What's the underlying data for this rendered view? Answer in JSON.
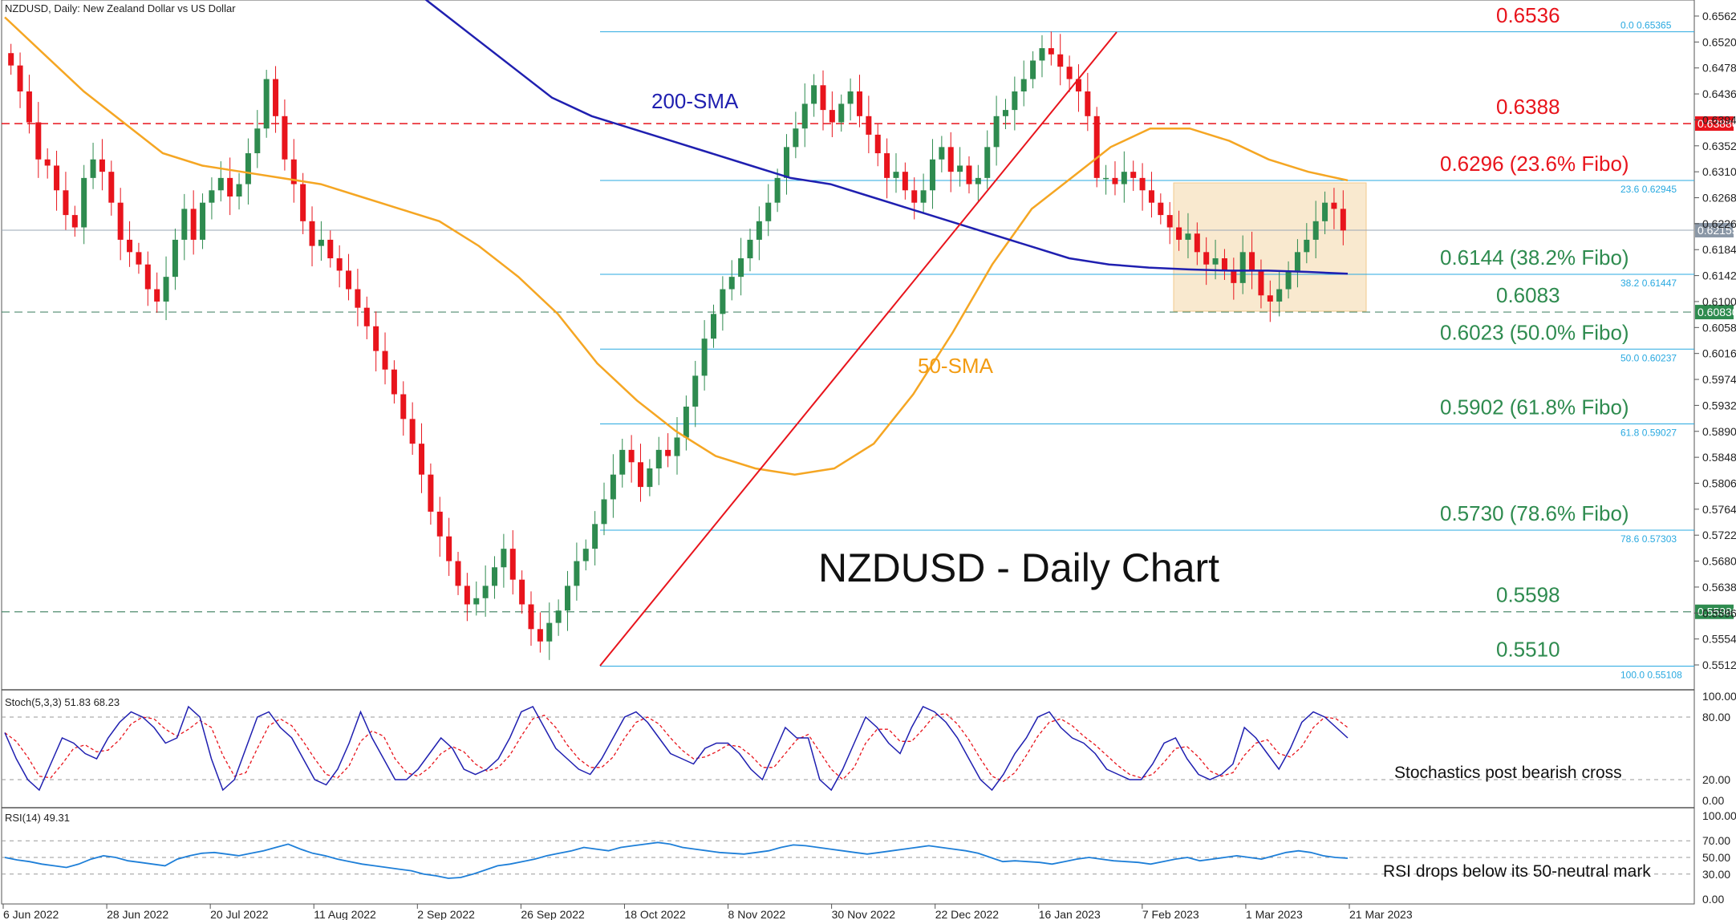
{
  "chart_data": {
    "type": "candlestick",
    "header": "NZDUSD, Daily:  New Zealand Dollar vs US Dollar",
    "title": "NZDUSD - Daily Chart",
    "x_labels": [
      "6 Jun 2022",
      "28 Jun 2022",
      "20 Jul 2022",
      "11 Aug 2022",
      "2 Sep 2022",
      "26 Sep 2022",
      "18 Oct 2022",
      "8 Nov 2022",
      "30 Nov 2022",
      "22 Dec 2022",
      "16 Jan 2023",
      "7 Feb 2023",
      "1 Mar 2023",
      "21 Mar 2023"
    ],
    "y_ticks": [
      "0.65620",
      "0.65200",
      "0.64780",
      "0.64360",
      "0.63940",
      "0.63520",
      "0.63100",
      "0.62680",
      "0.62260",
      "0.61840",
      "0.61420",
      "0.61000",
      "0.60580",
      "0.60160",
      "0.59740",
      "0.59320",
      "0.58900",
      "0.58480",
      "0.58060",
      "0.57640",
      "0.57220",
      "0.56800",
      "0.56380",
      "0.55960",
      "0.55540",
      "0.55120"
    ],
    "ylim": [
      0.5495,
      0.6575
    ],
    "close_series": [
      0.6482,
      0.644,
      0.639,
      0.633,
      0.632,
      0.628,
      0.624,
      0.622,
      0.63,
      0.633,
      0.631,
      0.626,
      0.62,
      0.618,
      0.616,
      0.612,
      0.61,
      0.614,
      0.62,
      0.625,
      0.62,
      0.626,
      0.628,
      0.63,
      0.627,
      0.629,
      0.634,
      0.638,
      0.646,
      0.64,
      0.633,
      0.629,
      0.623,
      0.619,
      0.62,
      0.617,
      0.615,
      0.612,
      0.609,
      0.606,
      0.602,
      0.599,
      0.595,
      0.591,
      0.587,
      0.582,
      0.576,
      0.572,
      0.568,
      0.564,
      0.561,
      0.562,
      0.564,
      0.567,
      0.57,
      0.565,
      0.561,
      0.557,
      0.555,
      0.558,
      0.56,
      0.564,
      0.568,
      0.57,
      0.574,
      0.578,
      0.582,
      0.586,
      0.584,
      0.58,
      0.583,
      0.586,
      0.585,
      0.588,
      0.593,
      0.598,
      0.604,
      0.608,
      0.612,
      0.614,
      0.617,
      0.62,
      0.623,
      0.626,
      0.63,
      0.635,
      0.638,
      0.642,
      0.645,
      0.641,
      0.639,
      0.642,
      0.644,
      0.64,
      0.637,
      0.634,
      0.63,
      0.631,
      0.628,
      0.626,
      0.628,
      0.633,
      0.635,
      0.631,
      0.632,
      0.629,
      0.63,
      0.635,
      0.64,
      0.641,
      0.644,
      0.646,
      0.649,
      0.651,
      0.65,
      0.648,
      0.646,
      0.644,
      0.64,
      0.63,
      0.63,
      0.629,
      0.631,
      0.63,
      0.628,
      0.626,
      0.624,
      0.622,
      0.62,
      0.621,
      0.618,
      0.616,
      0.617,
      0.615,
      0.613,
      0.618,
      0.615,
      0.611,
      0.61,
      0.612,
      0.615,
      0.618,
      0.62,
      0.623,
      0.626,
      0.625,
      0.6215
    ],
    "sma50": [
      0.656,
      0.65,
      0.644,
      0.639,
      0.634,
      0.632,
      0.631,
      0.63,
      0.629,
      0.627,
      0.625,
      0.623,
      0.619,
      0.614,
      0.608,
      0.6,
      0.594,
      0.589,
      0.585,
      0.583,
      0.582,
      0.583,
      0.587,
      0.595,
      0.605,
      0.616,
      0.625,
      0.63,
      0.635,
      0.638,
      0.638,
      0.636,
      0.633,
      0.631,
      0.6296
    ],
    "sma200": [
      0.668,
      0.663,
      0.658,
      0.653,
      0.648,
      0.643,
      0.64,
      0.638,
      0.636,
      0.634,
      0.632,
      0.63,
      0.629,
      0.627,
      0.625,
      0.623,
      0.621,
      0.619,
      0.617,
      0.616,
      0.6155,
      0.6152,
      0.615,
      0.615,
      0.6148,
      0.6145
    ],
    "levels": [
      {
        "value": 0.6536,
        "label": "0.6536",
        "color": "#e8141c",
        "style": "none"
      },
      {
        "value": 0.6388,
        "label": "0.6388",
        "color": "#e8141c",
        "style": "dashed-red",
        "tag": "0.63880"
      },
      {
        "value": 0.6296,
        "label": "0.6296 (23.6% Fibo)",
        "color": "#e8141c",
        "style": "fibo",
        "fibo_text": "23.6 0.62945"
      },
      {
        "value": 0.6144,
        "label": "0.6144 (38.2% Fibo)",
        "color": "#2e8b4f",
        "style": "fibo",
        "fibo_text": "38.2 0.61447"
      },
      {
        "value": 0.6083,
        "label": "0.6083",
        "color": "#2e8b4f",
        "style": "dashed-gray",
        "tag": "0.60830"
      },
      {
        "value": 0.6023,
        "label": "0.6023 (50.0% Fibo)",
        "color": "#2e8b4f",
        "style": "fibo",
        "fibo_text": "50.0 0.60237"
      },
      {
        "value": 0.5902,
        "label": "0.5902 (61.8% Fibo)",
        "color": "#2e8b4f",
        "style": "fibo",
        "fibo_text": "61.8 0.59027"
      },
      {
        "value": 0.573,
        "label": "0.5730 (78.6% Fibo)",
        "color": "#2e8b4f",
        "style": "fibo",
        "fibo_text": "78.6 0.57303"
      },
      {
        "value": 0.5598,
        "label": "0.5598",
        "color": "#2e8b4f",
        "style": "dashed-gray",
        "tag": "0.55980"
      },
      {
        "value": 0.551,
        "label": "0.5510",
        "color": "#2e8b4f",
        "style": "fibo",
        "fibo_text": "100.0 0.55108"
      }
    ],
    "fibo_top_text": "0.0 0.65365",
    "current_price_tag": "0.62155",
    "sma200_label": "200-SMA",
    "sma50_label": "50-SMA",
    "stoch": {
      "label": "Stoch(5,3,3) 51.83 68.23",
      "ticks": [
        "100.00",
        "80.00",
        "20.00",
        "0.00"
      ],
      "annotation": "Stochastics post bearish cross",
      "values": [
        65,
        40,
        20,
        10,
        35,
        60,
        55,
        45,
        40,
        60,
        75,
        85,
        80,
        70,
        55,
        60,
        90,
        80,
        40,
        10,
        20,
        50,
        80,
        85,
        70,
        60,
        40,
        20,
        15,
        30,
        55,
        85,
        60,
        40,
        20,
        20,
        30,
        45,
        60,
        50,
        30,
        25,
        30,
        40,
        60,
        85,
        90,
        70,
        50,
        40,
        30,
        25,
        40,
        60,
        80,
        85,
        75,
        60,
        45,
        40,
        35,
        50,
        55,
        55,
        45,
        30,
        20,
        45,
        70,
        60,
        60,
        20,
        10,
        30,
        55,
        80,
        70,
        55,
        45,
        70,
        90,
        85,
        75,
        60,
        40,
        20,
        10,
        25,
        45,
        60,
        80,
        85,
        70,
        60,
        55,
        45,
        30,
        25,
        20,
        20,
        35,
        55,
        60,
        40,
        25,
        20,
        25,
        35,
        70,
        60,
        45,
        30,
        50,
        75,
        85,
        80,
        70,
        60
      ]
    },
    "rsi": {
      "label": "RSI(14) 49.31",
      "ticks": [
        "100.00",
        "70.00",
        "50.00",
        "30.00",
        "0.00"
      ],
      "annotation": "RSI drops below its 50-neutral mark",
      "values": [
        50,
        47,
        45,
        42,
        40,
        38,
        42,
        48,
        52,
        50,
        46,
        44,
        42,
        40,
        48,
        52,
        55,
        56,
        54,
        52,
        55,
        58,
        62,
        66,
        60,
        55,
        52,
        48,
        45,
        42,
        40,
        38,
        36,
        34,
        30,
        28,
        25,
        26,
        30,
        35,
        40,
        42,
        45,
        48,
        52,
        55,
        58,
        62,
        60,
        58,
        62,
        64,
        66,
        68,
        66,
        62,
        60,
        58,
        56,
        55,
        54,
        56,
        58,
        62,
        65,
        64,
        62,
        60,
        58,
        56,
        54,
        56,
        58,
        60,
        62,
        64,
        62,
        60,
        58,
        55,
        50,
        45,
        46,
        45,
        44,
        42,
        45,
        48,
        50,
        48,
        46,
        45,
        44,
        42,
        45,
        48,
        50,
        46,
        48,
        50,
        52,
        50,
        48,
        52,
        56,
        58,
        56,
        52,
        50,
        49
      ]
    }
  }
}
